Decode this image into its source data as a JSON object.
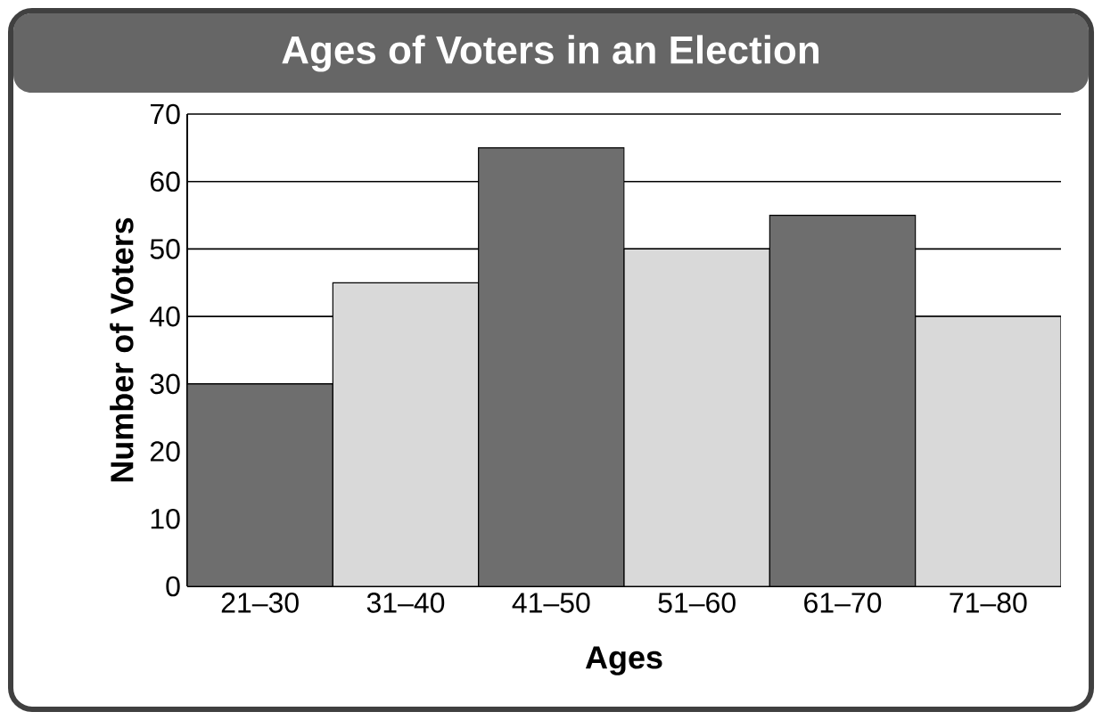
{
  "chart_data": {
    "type": "bar",
    "title": "Ages of Voters in an Election",
    "xlabel": "Ages",
    "ylabel": "Number of Voters",
    "categories": [
      "21–30",
      "31–40",
      "41–50",
      "51–60",
      "61–70",
      "71–80"
    ],
    "values": [
      30,
      45,
      65,
      50,
      55,
      40
    ],
    "colors": [
      "#6e6e6e",
      "#d9d9d9",
      "#6e6e6e",
      "#d9d9d9",
      "#6e6e6e",
      "#d9d9d9"
    ],
    "ylim": [
      0,
      70
    ],
    "yticks": [
      0,
      10,
      20,
      30,
      40,
      50,
      60,
      70
    ],
    "grid": "y"
  }
}
